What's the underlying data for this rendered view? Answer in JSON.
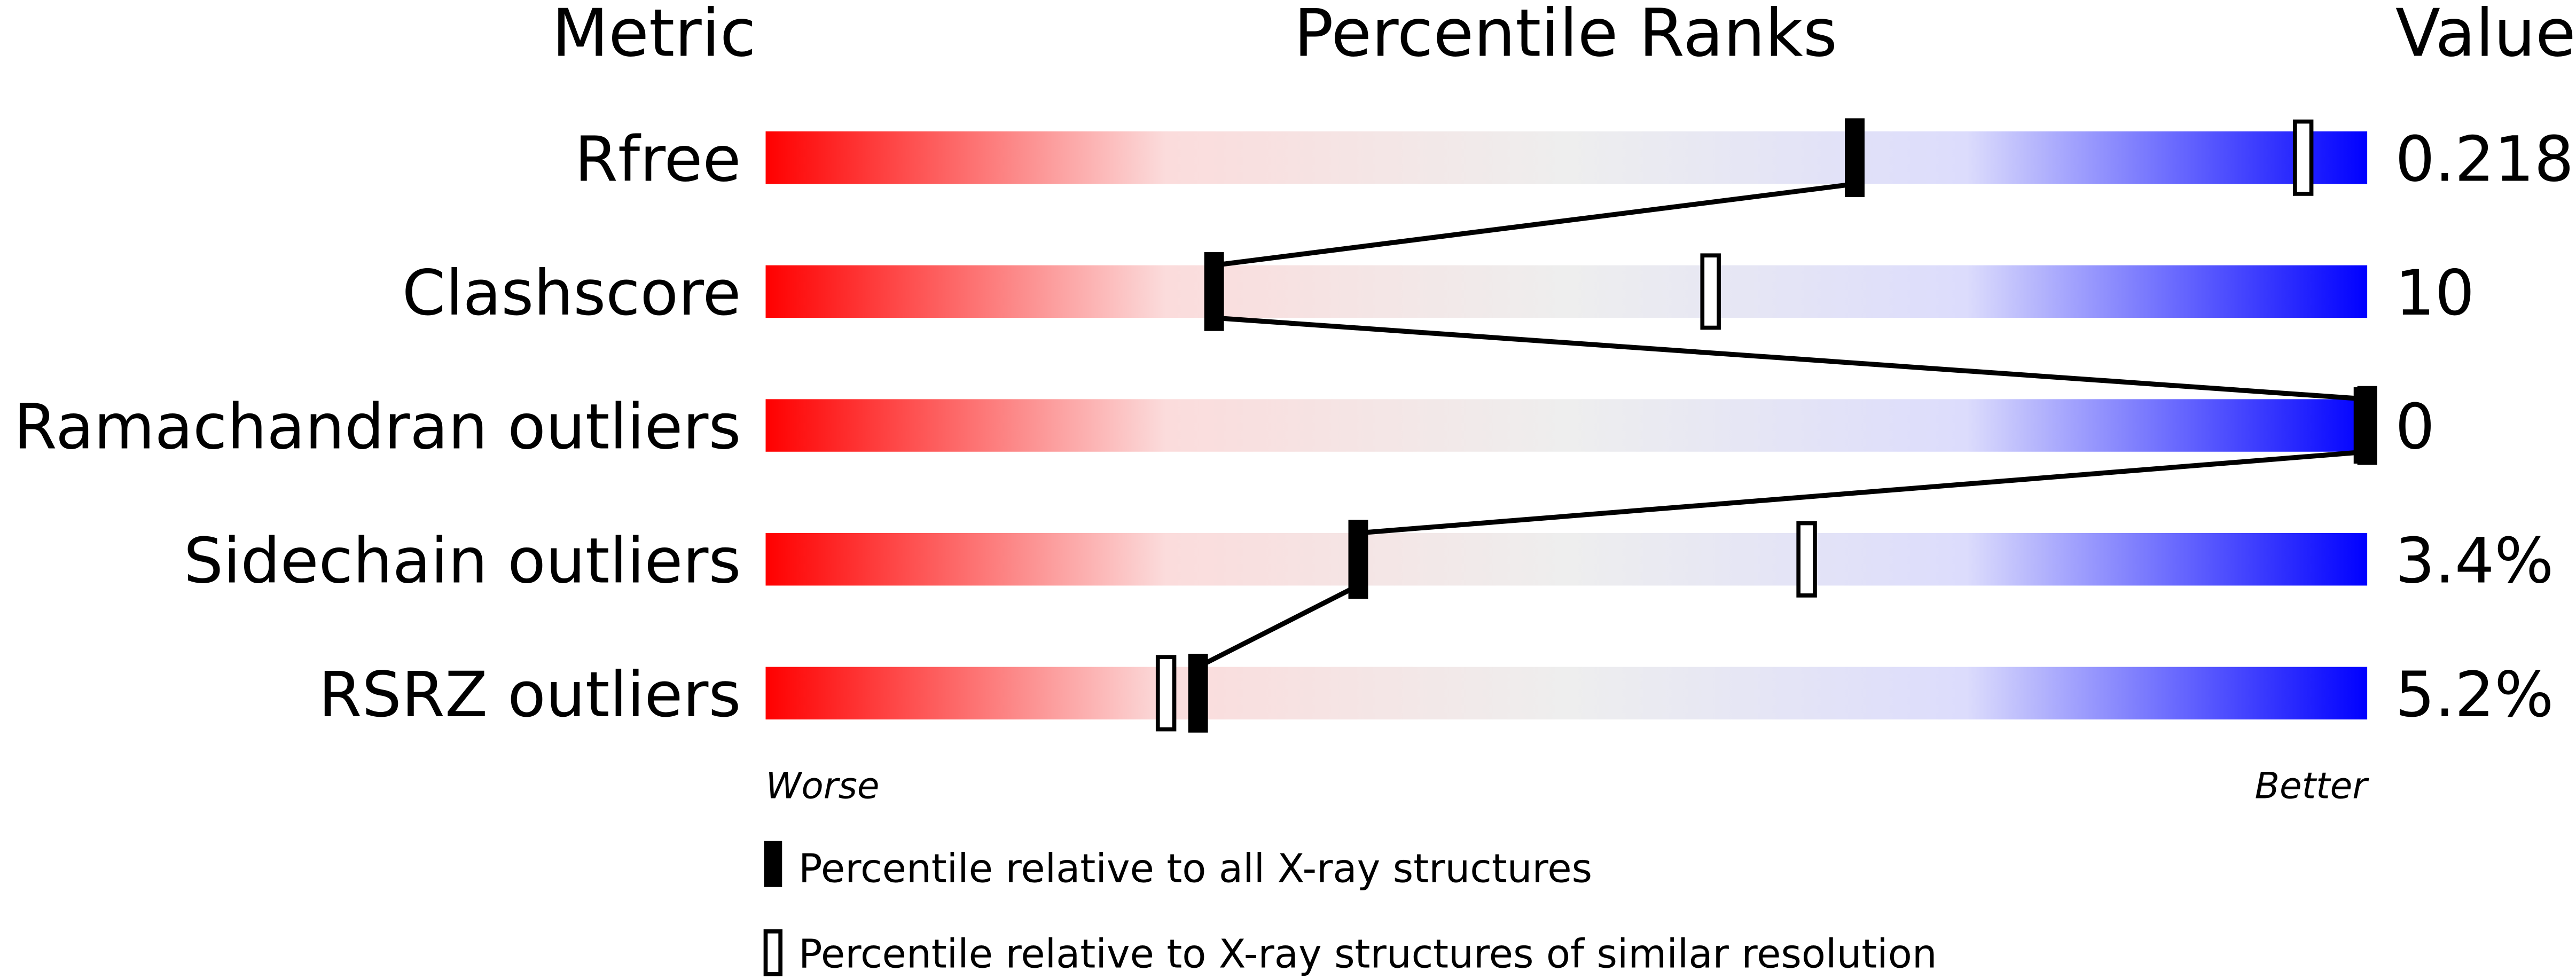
{
  "chart_data": {
    "type": "percentile-slider",
    "headers": {
      "metric": "Metric",
      "ranks": "Percentile Ranks",
      "value": "Value"
    },
    "axis": {
      "left_label": "Worse",
      "right_label": "Better",
      "range": [
        0,
        100
      ]
    },
    "gradient_colors": [
      "#ff0000",
      "#fbdcdc",
      "#eeeeee",
      "#dcdcfc",
      "#0000ff"
    ],
    "metrics": [
      {
        "name": "Rfree",
        "value": "0.218",
        "percentile_all": 68,
        "percentile_similar": 96
      },
      {
        "name": "Clashscore",
        "value": "10",
        "percentile_all": 28,
        "percentile_similar": 59
      },
      {
        "name": "Ramachandran outliers",
        "value": "0",
        "percentile_all": 100,
        "percentile_similar": 100
      },
      {
        "name": "Sidechain outliers",
        "value": "3.4%",
        "percentile_all": 37,
        "percentile_similar": 65
      },
      {
        "name": "RSRZ outliers",
        "value": "5.2%",
        "percentile_all": 27,
        "percentile_similar": 25
      }
    ],
    "legend": {
      "all": "Percentile relative to all X-ray structures",
      "similar": "Percentile relative to X-ray structures of similar resolution"
    }
  }
}
